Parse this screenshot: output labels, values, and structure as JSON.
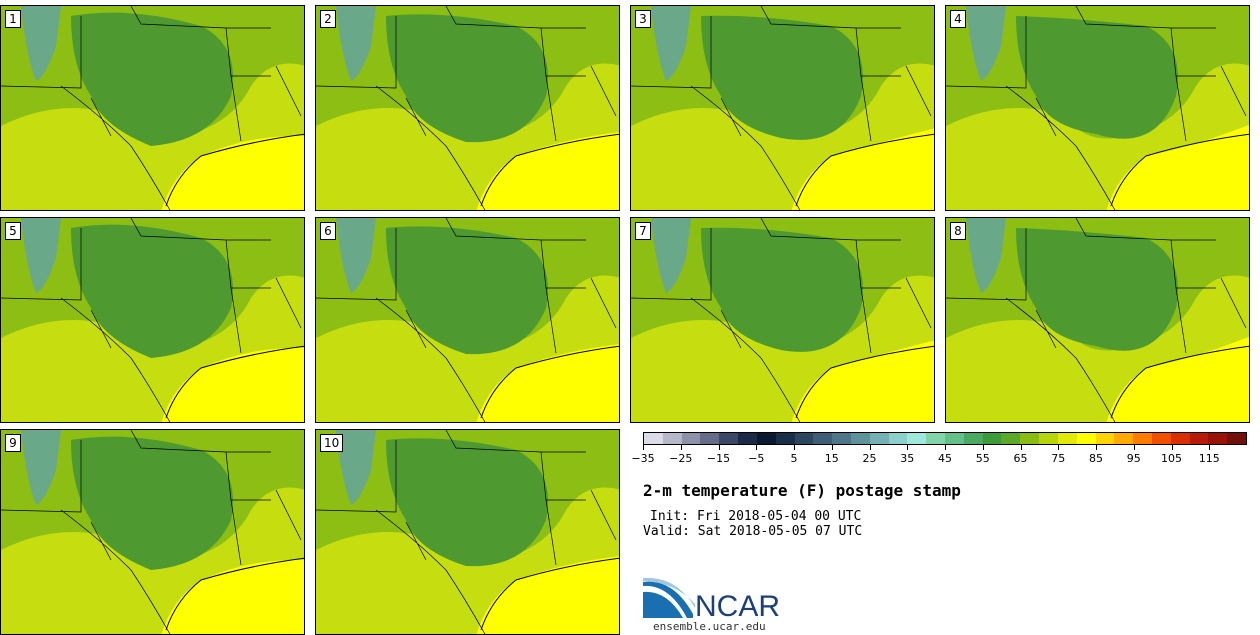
{
  "panels": [
    {
      "label": "1"
    },
    {
      "label": "2"
    },
    {
      "label": "3"
    },
    {
      "label": "4"
    },
    {
      "label": "5"
    },
    {
      "label": "6"
    },
    {
      "label": "7"
    },
    {
      "label": "8"
    },
    {
      "label": "9"
    },
    {
      "label": "10"
    }
  ],
  "colorbar": {
    "colors": [
      "#dcdce8",
      "#b4b8c8",
      "#8c92a8",
      "#646c88",
      "#3c4868",
      "#1c2a48",
      "#0a1830",
      "#1a2e48",
      "#2c4660",
      "#3e5e78",
      "#4e7688",
      "#60929c",
      "#74b0b4",
      "#8ad0cc",
      "#a0e8dc",
      "#80d4a8",
      "#62c088",
      "#4caa60",
      "#3c9a38",
      "#5ca828",
      "#8abc14",
      "#b8d40a",
      "#e0ea06",
      "#ffff00",
      "#ffd400",
      "#ffaa00",
      "#ff7c00",
      "#f05000",
      "#d83000",
      "#b81c08",
      "#981208",
      "#701008"
    ],
    "tick_labels": [
      "−35",
      "−25",
      "−15",
      "−5",
      "5",
      "15",
      "25",
      "35",
      "45",
      "55",
      "65",
      "75",
      "85",
      "95",
      "105",
      "115"
    ]
  },
  "title": "2-m temperature (F) postage stamp",
  "init": "Init: Fri 2018-05-04 00 UTC",
  "valid": "Valid: Sat 2018-05-05 07 UTC",
  "logo_text": "NCAR",
  "url": "ensemble.ucar.edu",
  "map_colors": {
    "cold": "#6aa88a",
    "mid": "#4e9a30",
    "warm": "#8cbe14",
    "hot": "#c6de10",
    "gulf": "#ffff00"
  }
}
